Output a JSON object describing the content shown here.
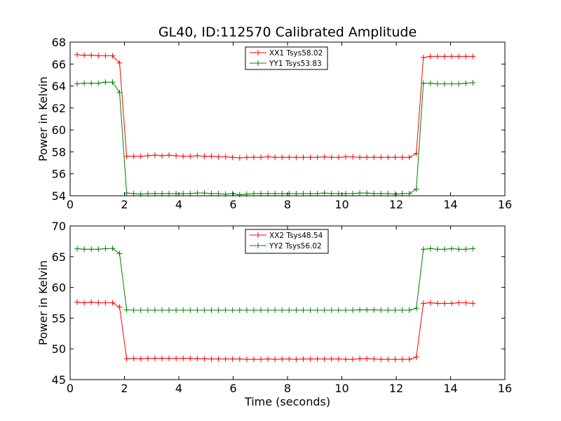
{
  "figure_title": "GL40, ID:112570 Calibrated Amplitude",
  "colors": {
    "red": "#ff0000",
    "green": "#008000"
  },
  "chart_data": [
    {
      "type": "line",
      "title": "GL40, ID:112570 Calibrated Amplitude",
      "xlabel": "",
      "ylabel": "Power in Kelvin",
      "xlim": [
        0,
        16
      ],
      "ylim": [
        54,
        68
      ],
      "xticks": [
        0,
        2,
        4,
        6,
        8,
        10,
        12,
        14,
        16
      ],
      "yticks": [
        54,
        56,
        58,
        60,
        62,
        64,
        66,
        68
      ],
      "legend_position": "top-center",
      "x": [
        0.26,
        0.52,
        0.78,
        1.04,
        1.3,
        1.56,
        1.82,
        2.08,
        2.34,
        2.6,
        2.86,
        3.12,
        3.38,
        3.64,
        3.9,
        4.16,
        4.42,
        4.68,
        4.94,
        5.2,
        5.46,
        5.72,
        5.98,
        6.24,
        6.5,
        6.76,
        7.02,
        7.28,
        7.54,
        7.8,
        8.06,
        8.32,
        8.58,
        8.84,
        9.1,
        9.36,
        9.62,
        9.88,
        10.14,
        10.4,
        10.66,
        10.92,
        11.18,
        11.44,
        11.7,
        11.96,
        12.22,
        12.48,
        12.74,
        13.0,
        13.26,
        13.52,
        13.78,
        14.04,
        14.3,
        14.56,
        14.82
      ],
      "series": [
        {
          "name": "XX1 Tsys58.02",
          "color": "#ff0000",
          "values": [
            66.85,
            66.8,
            66.8,
            66.75,
            66.75,
            66.75,
            66.1,
            57.6,
            57.6,
            57.6,
            57.65,
            57.7,
            57.65,
            57.7,
            57.65,
            57.6,
            57.6,
            57.65,
            57.6,
            57.6,
            57.55,
            57.55,
            57.5,
            57.45,
            57.5,
            57.5,
            57.5,
            57.55,
            57.5,
            57.5,
            57.5,
            57.5,
            57.5,
            57.5,
            57.5,
            57.55,
            57.5,
            57.5,
            57.55,
            57.55,
            57.5,
            57.5,
            57.5,
            57.5,
            57.5,
            57.5,
            57.5,
            57.5,
            57.85,
            66.6,
            66.7,
            66.7,
            66.7,
            66.7,
            66.7,
            66.7,
            66.7
          ]
        },
        {
          "name": "YY1 Tsys53.83",
          "color": "#008000",
          "values": [
            64.2,
            64.25,
            64.25,
            64.25,
            64.35,
            64.35,
            63.4,
            54.25,
            54.2,
            54.15,
            54.2,
            54.2,
            54.2,
            54.2,
            54.2,
            54.2,
            54.2,
            54.25,
            54.25,
            54.2,
            54.2,
            54.15,
            54.2,
            54.1,
            54.15,
            54.2,
            54.2,
            54.2,
            54.2,
            54.2,
            54.2,
            54.2,
            54.2,
            54.2,
            54.2,
            54.25,
            54.2,
            54.2,
            54.2,
            54.2,
            54.25,
            54.25,
            54.2,
            54.2,
            54.2,
            54.15,
            54.2,
            54.2,
            54.6,
            64.25,
            64.25,
            64.2,
            64.2,
            64.2,
            64.2,
            64.25,
            64.3
          ]
        }
      ]
    },
    {
      "type": "line",
      "title": "",
      "xlabel": "Time (seconds)",
      "ylabel": "Power in Kelvin",
      "xlim": [
        0,
        16
      ],
      "ylim": [
        45,
        70
      ],
      "xticks": [
        0,
        2,
        4,
        6,
        8,
        10,
        12,
        14,
        16
      ],
      "yticks": [
        45,
        50,
        55,
        60,
        65,
        70
      ],
      "legend_position": "top-center",
      "x": [
        0.26,
        0.52,
        0.78,
        1.04,
        1.3,
        1.56,
        1.82,
        2.08,
        2.34,
        2.6,
        2.86,
        3.12,
        3.38,
        3.64,
        3.9,
        4.16,
        4.42,
        4.68,
        4.94,
        5.2,
        5.46,
        5.72,
        5.98,
        6.24,
        6.5,
        6.76,
        7.02,
        7.28,
        7.54,
        7.8,
        8.06,
        8.32,
        8.58,
        8.84,
        9.1,
        9.36,
        9.62,
        9.88,
        10.14,
        10.4,
        10.66,
        10.92,
        11.18,
        11.44,
        11.7,
        11.96,
        12.22,
        12.48,
        12.74,
        13.0,
        13.26,
        13.52,
        13.78,
        14.04,
        14.3,
        14.56,
        14.82
      ],
      "series": [
        {
          "name": "XX2 Tsys48.54",
          "color": "#ff0000",
          "values": [
            57.6,
            57.5,
            57.6,
            57.5,
            57.5,
            57.5,
            56.8,
            48.4,
            48.45,
            48.4,
            48.45,
            48.45,
            48.45,
            48.45,
            48.45,
            48.45,
            48.45,
            48.4,
            48.4,
            48.35,
            48.35,
            48.35,
            48.35,
            48.35,
            48.3,
            48.3,
            48.3,
            48.35,
            48.3,
            48.35,
            48.35,
            48.3,
            48.35,
            48.35,
            48.35,
            48.35,
            48.35,
            48.35,
            48.3,
            48.3,
            48.4,
            48.4,
            48.35,
            48.3,
            48.3,
            48.3,
            48.3,
            48.3,
            48.65,
            57.4,
            57.5,
            57.4,
            57.4,
            57.4,
            57.5,
            57.5,
            57.4
          ]
        },
        {
          "name": "YY2 Tsys56.02",
          "color": "#008000",
          "values": [
            66.3,
            66.2,
            66.2,
            66.2,
            66.3,
            66.35,
            65.5,
            56.35,
            56.3,
            56.3,
            56.3,
            56.3,
            56.3,
            56.3,
            56.3,
            56.3,
            56.3,
            56.3,
            56.3,
            56.3,
            56.3,
            56.3,
            56.3,
            56.3,
            56.3,
            56.3,
            56.3,
            56.3,
            56.3,
            56.3,
            56.3,
            56.3,
            56.3,
            56.3,
            56.3,
            56.3,
            56.3,
            56.3,
            56.3,
            56.3,
            56.35,
            56.35,
            56.35,
            56.3,
            56.3,
            56.3,
            56.3,
            56.3,
            56.6,
            66.2,
            66.3,
            66.2,
            66.2,
            66.3,
            66.2,
            66.2,
            66.3
          ]
        }
      ]
    }
  ]
}
